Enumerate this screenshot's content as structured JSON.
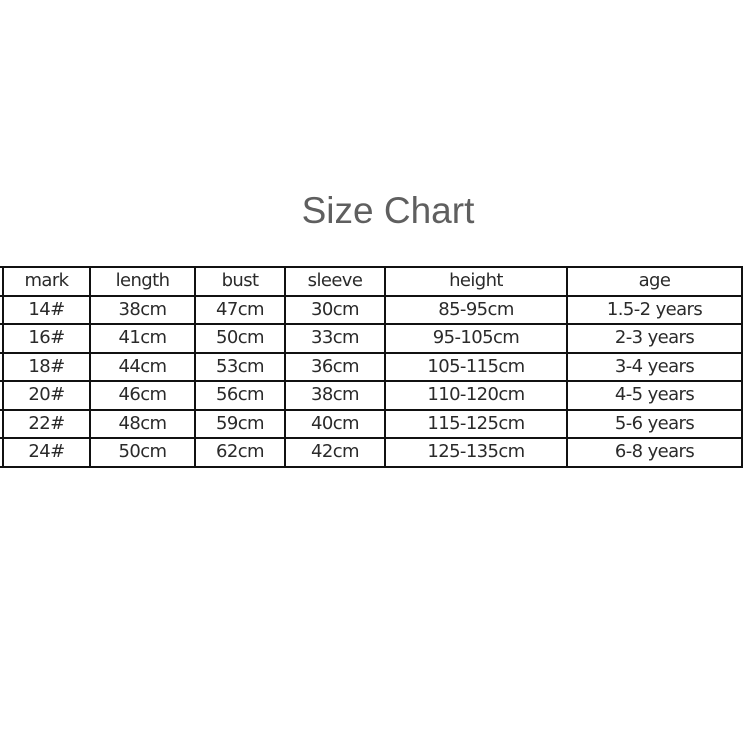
{
  "title": "Size Chart",
  "headers": [
    "mark",
    "length",
    "bust",
    "sleeve",
    "height",
    "age"
  ],
  "rows": [
    [
      "14#",
      "38cm",
      "47cm",
      "30cm",
      "85-95cm",
      "1.5-2 years"
    ],
    [
      "16#",
      "41cm",
      "50cm",
      "33cm",
      "95-105cm",
      "2-3 years"
    ],
    [
      "18#",
      "44cm",
      "53cm",
      "36cm",
      "105-115cm",
      "3-4 years"
    ],
    [
      "20#",
      "46cm",
      "56cm",
      "38cm",
      "110-120cm",
      "4-5 years"
    ],
    [
      "22#",
      "48cm",
      "59cm",
      "40cm",
      "115-125cm",
      "5-6 years"
    ],
    [
      "24#",
      "50cm",
      "62cm",
      "42cm",
      "125-135cm",
      "6-8 years"
    ]
  ]
}
